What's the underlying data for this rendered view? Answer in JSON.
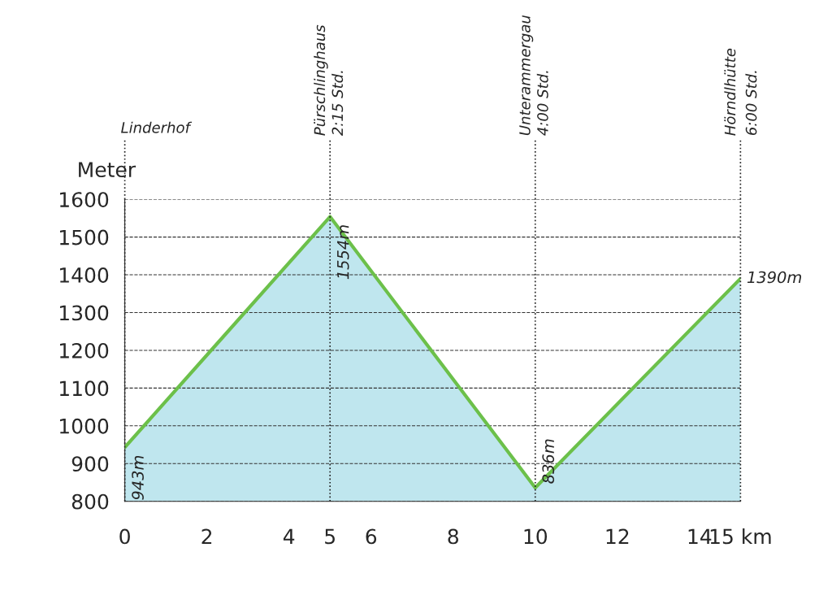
{
  "chart_data": {
    "type": "area",
    "ylabel": "Meter",
    "x": [
      0,
      5,
      10,
      15
    ],
    "series": [
      {
        "color": "#bfe6ee",
        "values": [
          943,
          1554,
          836,
          1390
        ],
        "value_labels": [
          "943m",
          "1554m",
          "836m",
          "1390m"
        ]
      }
    ],
    "xlim": [
      0,
      15
    ],
    "ylim": [
      800,
      1600
    ],
    "xticks": [
      0,
      2,
      4,
      5,
      6,
      8,
      10,
      12,
      14,
      {
        "value": 15,
        "label": "15 km"
      }
    ],
    "yticks": [
      800,
      900,
      1000,
      1100,
      1200,
      1300,
      1400,
      1500,
      1600
    ],
    "grid": "y",
    "line_style": "solid",
    "marker": "none",
    "ref_lines": [
      {
        "axis": "x",
        "value": 0,
        "label": "Linderhof",
        "line_style": "dotted"
      },
      {
        "axis": "x",
        "value": 5,
        "label": "Pürschlinghaus",
        "line_style": "dotted"
      },
      {
        "axis": "x",
        "value": 10,
        "label": "Unterammergau",
        "line_style": "dotted"
      },
      {
        "axis": "x",
        "value": 15,
        "label": "Hörndlhütte",
        "line_style": "dotted"
      }
    ],
    "annotations": [
      {
        "text": "2:15 Std.",
        "x": 5,
        "y": 1600
      },
      {
        "text": "4:00 Std.",
        "x": 10,
        "y": 1600
      },
      "6:00 Std."
    ]
  }
}
